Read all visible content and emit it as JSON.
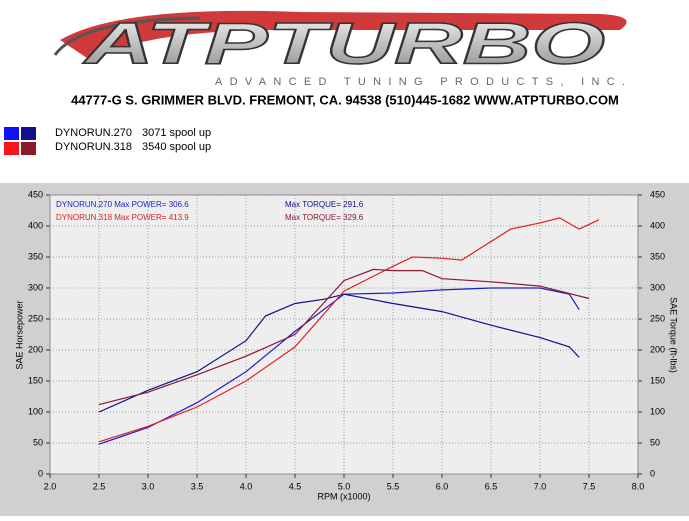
{
  "header": {
    "logo": "ATPTURBO",
    "tagline": "ADVANCED TUNING PRODUCTS, INC.",
    "address": "44777-G S. GRIMMER BLVD. FREMONT, CA. 94538 (510)445-1682 WWW.ATPTURBO.COM"
  },
  "legend": [
    {
      "run": "DYNORUN.270",
      "note": "3071 spool up"
    },
    {
      "run": "DYNORUN.318",
      "note": "3540 spool up"
    }
  ],
  "chart_data": {
    "type": "line",
    "y_label": "SAE Horsepower",
    "y2_label": "SAE Torque (ft-lbs)",
    "x_label": "RPM (x1000)",
    "annotations": [
      {
        "text": "DYNORUN.270  Max POWER= 306.6",
        "color": "#1c1ccc"
      },
      {
        "text": "Max TORQUE= 291.6",
        "color": "#10108a"
      },
      {
        "text": "DYNORUN.318  Max POWER= 413.9",
        "color": "#e02020"
      },
      {
        "text": "Max TORQUE= 329.6",
        "color": "#8a1a2a"
      }
    ],
    "xlim": [
      2,
      8
    ],
    "ylim": [
      0,
      450
    ],
    "y2lim": [
      0,
      450
    ],
    "xticks": [
      {
        "value": 2,
        "label": "2.0"
      },
      {
        "value": 2.5,
        "label": "2.5"
      },
      {
        "value": 3,
        "label": "3.0"
      },
      {
        "value": 3.5,
        "label": "3.5"
      },
      {
        "value": 4,
        "label": "4.0"
      },
      {
        "value": 4.5,
        "label": "4.5"
      },
      {
        "value": 5,
        "label": "5.0"
      },
      {
        "value": 5.5,
        "label": "5.5"
      },
      {
        "value": 6,
        "label": "6.0"
      },
      {
        "value": 6.5,
        "label": "6.5"
      },
      {
        "value": 7,
        "label": "7.0"
      },
      {
        "value": 7.5,
        "label": "7.5"
      },
      {
        "value": 8,
        "label": "8.0"
      }
    ],
    "yticks": [
      0,
      50,
      100,
      150,
      200,
      250,
      300,
      350,
      400,
      450
    ],
    "y2ticks": [
      0,
      50,
      100,
      150,
      200,
      250,
      300,
      350,
      400,
      450
    ],
    "grid": true,
    "series": [
      {
        "color": "#1c1ccc",
        "x": [
          2.5,
          3.0,
          3.5,
          4.0,
          4.5,
          5.0,
          5.5,
          6.0,
          6.5,
          7.0,
          7.3,
          7.4
        ],
        "values": [
          48,
          75,
          115,
          165,
          230,
          290,
          292,
          297,
          300,
          300,
          290,
          265
        ]
      },
      {
        "color": "#10108a",
        "axis": "y2",
        "x": [
          2.5,
          3.0,
          3.5,
          4.0,
          4.2,
          4.5,
          4.8,
          5.0,
          5.5,
          6.0,
          6.5,
          7.0,
          7.3,
          7.4
        ],
        "values": [
          100,
          135,
          165,
          215,
          255,
          275,
          282,
          290,
          275,
          262,
          240,
          220,
          205,
          188
        ]
      },
      {
        "color": "#e02020",
        "x": [
          2.5,
          3.0,
          3.5,
          4.0,
          4.5,
          5.0,
          5.5,
          5.7,
          6.0,
          6.2,
          6.5,
          6.7,
          7.0,
          7.2,
          7.4,
          7.6
        ],
        "values": [
          52,
          77,
          108,
          150,
          205,
          295,
          335,
          350,
          348,
          345,
          375,
          395,
          405,
          413,
          395,
          410
        ]
      },
      {
        "color": "#8a1a2a",
        "axis": "y2",
        "x": [
          2.5,
          3.0,
          3.5,
          4.0,
          4.5,
          5.0,
          5.3,
          5.5,
          5.8,
          6.0,
          6.5,
          7.0,
          7.5
        ],
        "values": [
          112,
          132,
          160,
          190,
          225,
          312,
          330,
          328,
          328,
          315,
          310,
          303,
          283
        ]
      }
    ]
  }
}
